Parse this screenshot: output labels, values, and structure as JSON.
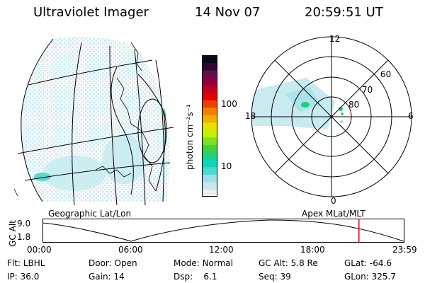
{
  "header": {
    "instrument": "Ultraviolet Imager",
    "date": "14 Nov 07",
    "time": "20:59:51 UT"
  },
  "colorbar": {
    "label": "photon cm⁻²s⁻¹",
    "ticks": [
      "100",
      "10"
    ],
    "scale": "log",
    "colors": [
      "#e8f0f4",
      "#c8e6ee",
      "#9ee0e6",
      "#4fd8d0",
      "#10d6b8",
      "#20d080",
      "#40d040",
      "#80e020",
      "#c8f000",
      "#e8e000",
      "#f0b000",
      "#f08000",
      "#f04000",
      "#e00000",
      "#c00020",
      "#900040",
      "#601050",
      "#30082a",
      "#080818"
    ]
  },
  "geo_panel": {
    "label": "Geographic Lat/Lon"
  },
  "polar_panel": {
    "label": "Apex MLat/MLT",
    "mlt_labels": [
      "12",
      "18",
      "6",
      "0"
    ],
    "mlat_labels": [
      "60",
      "70",
      "80"
    ]
  },
  "timeline": {
    "ylabel": "GC Alt",
    "ytick_top": "9.0",
    "ytick_bottom": "1.8",
    "xticks": [
      "00:00",
      "06:00",
      "12:00",
      "18:00",
      "23:59"
    ],
    "marker_color": "#e00000",
    "marker_time_fraction": 0.875
  },
  "info": {
    "filter_label": "Flt:",
    "filter_value": "LBHL",
    "ip_label": "IP:",
    "ip_value": "36.0",
    "door_label": "Door:",
    "door_value": "Open",
    "gain_label": "Gain:",
    "gain_value": "14",
    "mode_label": "Mode:",
    "mode_value": "Normal",
    "dsp_label": "Dsp:",
    "dsp_value": "6.1",
    "gcalt_label": "GC Alt:",
    "gcalt_value": "5.8 Re",
    "seq_label": "Seq:",
    "seq_value": "39",
    "glat_label": "GLat:",
    "glat_value": "-64.6",
    "glon_label": "GLon:",
    "glon_value": "325.7"
  }
}
